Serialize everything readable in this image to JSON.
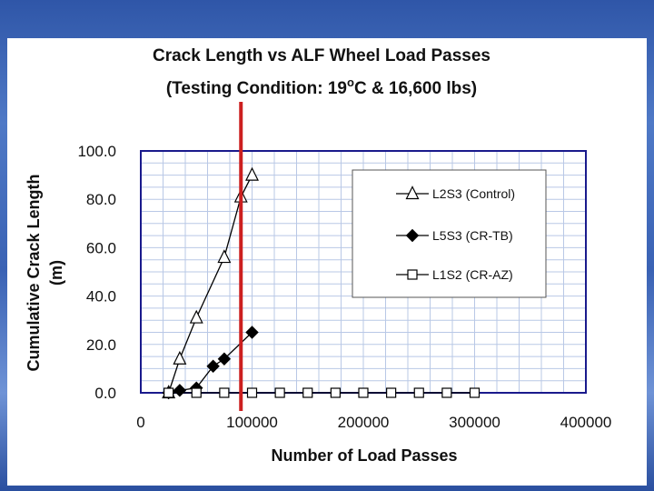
{
  "slide": {
    "background_color": "#3b63b3",
    "frame_color": "#ffffff"
  },
  "chart_data": {
    "type": "scatter",
    "title": "Crack Length vs ALF Wheel Load Passes",
    "subtitle": {
      "prefix": "(Testing Condition: 19",
      "superscript": "o",
      "suffix": "C & 16,600 lbs)"
    },
    "xlabel": "Number of Load Passes",
    "ylabel_lines": [
      "Cumulative Crack Length",
      "(m)"
    ],
    "xlim": [
      0,
      400000
    ],
    "ylim": [
      0,
      100
    ],
    "x_ticks": [
      0,
      100000,
      200000,
      300000,
      400000
    ],
    "x_tick_labels": [
      "0",
      "100000",
      "200000",
      "300000",
      "400000"
    ],
    "y_ticks": [
      0,
      20,
      40,
      60,
      80,
      100
    ],
    "y_tick_labels": [
      "0.0",
      "20.0",
      "40.0",
      "60.0",
      "80.0",
      "100.0"
    ],
    "grid": true,
    "legend_position": "top-right",
    "plot_border_color": "#1a1a8c",
    "grid_color": "#b9c8e6",
    "vertical_marker": {
      "x": 90000,
      "color": "#cc1f1f"
    },
    "series": [
      {
        "name": "L2S3 (Control)",
        "marker": "triangle",
        "points": [
          [
            25000,
            0
          ],
          [
            35000,
            14
          ],
          [
            50000,
            31
          ],
          [
            75000,
            56
          ],
          [
            90000,
            81
          ],
          [
            100000,
            90
          ]
        ]
      },
      {
        "name": "L5S3 (CR-TB)",
        "marker": "diamond",
        "points": [
          [
            25000,
            0
          ],
          [
            35000,
            1
          ],
          [
            50000,
            2
          ],
          [
            65000,
            11
          ],
          [
            75000,
            14
          ],
          [
            100000,
            25
          ]
        ]
      },
      {
        "name": "L1S2 (CR-AZ)",
        "marker": "square",
        "points": [
          [
            25000,
            0
          ],
          [
            50000,
            0
          ],
          [
            75000,
            0
          ],
          [
            100000,
            0
          ],
          [
            125000,
            0
          ],
          [
            150000,
            0
          ],
          [
            175000,
            0
          ],
          [
            200000,
            0
          ],
          [
            225000,
            0
          ],
          [
            250000,
            0
          ],
          [
            275000,
            0
          ],
          [
            300000,
            0
          ]
        ]
      }
    ]
  }
}
